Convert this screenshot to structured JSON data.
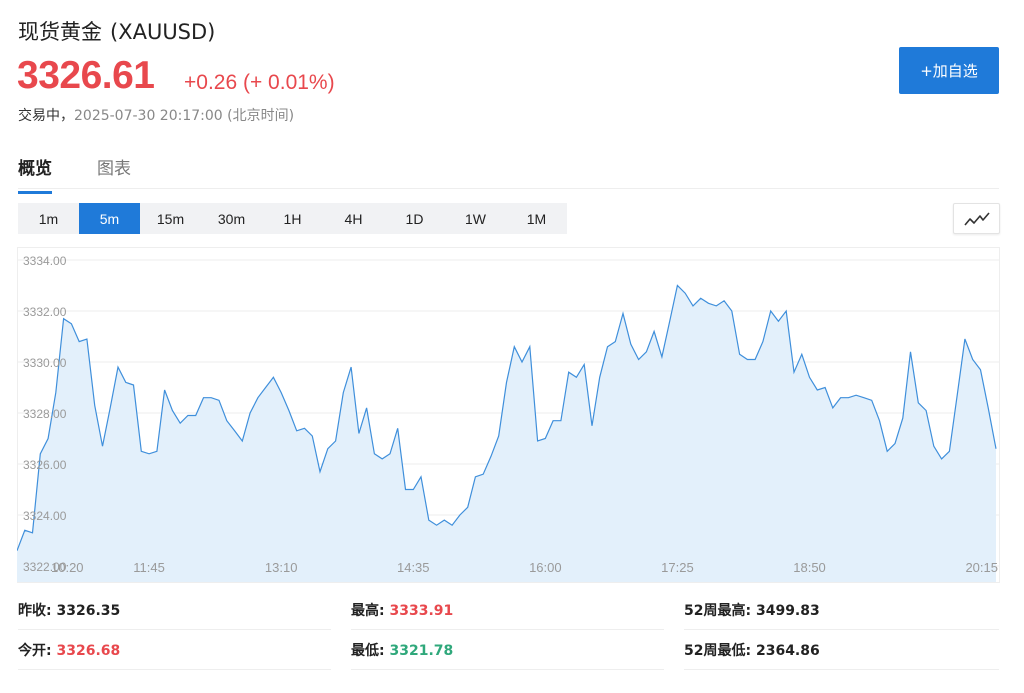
{
  "header": {
    "name": "现货黄金",
    "code": "(XAUUSD)",
    "price": "3326.61",
    "change": "+0.26 (+ 0.01%)",
    "status_label": "交易中，",
    "timestamp": "2025-07-30 20:17:00 (北京时间)",
    "add_watchlist": "+加自选",
    "price_color": "#e8484d",
    "accent": "#1f7ad9"
  },
  "tabs": [
    {
      "label": "概览",
      "active": true
    },
    {
      "label": "图表",
      "active": false
    }
  ],
  "intervals": [
    "1m",
    "5m",
    "15m",
    "30m",
    "1H",
    "4H",
    "1D",
    "1W",
    "1M"
  ],
  "active_interval": "5m",
  "chart_type_icon": "line-chart-icon",
  "chart_data": {
    "type": "area",
    "title": "",
    "xlabel": "",
    "ylabel": "",
    "ylim": [
      3322.0,
      3334.0
    ],
    "y_ticks": [
      "3322.00",
      "3324.00",
      "3326.00",
      "3328.00",
      "3330.00",
      "3332.00",
      "3334.00"
    ],
    "x_ticks": [
      "10:20",
      "11:45",
      "13:10",
      "14:35",
      "16:00",
      "17:25",
      "18:50",
      "20:15"
    ],
    "x_tick_index": [
      0,
      17,
      34,
      51,
      68,
      85,
      102,
      119
    ],
    "grid": true,
    "series": [
      {
        "values": [
          3322.6,
          3323.4,
          3323.3,
          3326.4,
          3327.0,
          3328.8,
          3331.7,
          3331.5,
          3330.8,
          3330.9,
          3328.3,
          3326.7,
          3328.2,
          3329.8,
          3329.2,
          3329.1,
          3326.5,
          3326.4,
          3326.5,
          3328.9,
          3328.1,
          3327.6,
          3327.9,
          3327.9,
          3328.6,
          3328.6,
          3328.5,
          3327.7,
          3327.3,
          3326.9,
          3328.0,
          3328.6,
          3329.0,
          3329.4,
          3328.8,
          3328.1,
          3327.3,
          3327.4,
          3327.1,
          3325.7,
          3326.6,
          3326.9,
          3328.8,
          3329.8,
          3327.2,
          3328.2,
          3326.4,
          3326.2,
          3326.4,
          3327.4,
          3325.0,
          3325.0,
          3325.5,
          3323.8,
          3323.6,
          3323.8,
          3323.6,
          3324.0,
          3324.3,
          3325.5,
          3325.6,
          3326.3,
          3327.1,
          3329.2,
          3330.6,
          3330.0,
          3330.6,
          3326.9,
          3327.0,
          3327.7,
          3327.7,
          3329.6,
          3329.4,
          3329.9,
          3327.5,
          3329.4,
          3330.6,
          3330.8,
          3331.9,
          3330.7,
          3330.1,
          3330.4,
          3331.2,
          3330.2,
          3331.6,
          3333.0,
          3332.7,
          3332.2,
          3332.5,
          3332.3,
          3332.2,
          3332.4,
          3332.0,
          3330.3,
          3330.1,
          3330.1,
          3330.8,
          3332.0,
          3331.6,
          3332.0,
          3329.6,
          3330.3,
          3329.4,
          3328.9,
          3329.0,
          3328.2,
          3328.6,
          3328.6,
          3328.7,
          3328.6,
          3328.5,
          3327.7,
          3326.5,
          3326.8,
          3327.8,
          3330.4,
          3328.4,
          3328.1,
          3326.7,
          3326.2,
          3326.5,
          3328.7,
          3330.9,
          3330.1,
          3329.7,
          3328.2,
          3326.6
        ]
      }
    ]
  },
  "stats": {
    "prev_close": {
      "label": "昨收:",
      "value": "3326.35"
    },
    "high": {
      "label": "最高:",
      "value": "3333.91"
    },
    "high52": {
      "label": "52周最高:",
      "value": "3499.83"
    },
    "open": {
      "label": "今开:",
      "value": "3326.68"
    },
    "low": {
      "label": "最低:",
      "value": "3321.78"
    },
    "low52": {
      "label": "52周最低:",
      "value": "2364.86"
    }
  }
}
